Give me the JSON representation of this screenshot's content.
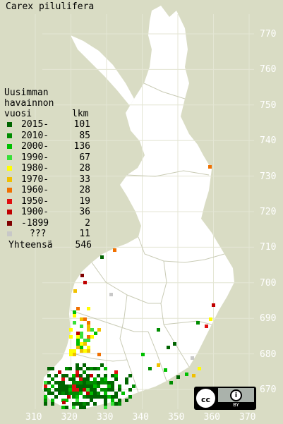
{
  "title": "Carex pilulifera",
  "y_ticks": [
    "770",
    "760",
    "750",
    "740",
    "730",
    "720",
    "710",
    "700",
    "690",
    "680",
    "670"
  ],
  "x_ticks": [
    "310",
    "320",
    "330",
    "340",
    "350",
    "360",
    "370"
  ],
  "legend": {
    "heading": [
      "Uusimman",
      "havainnon",
      "vuosi"
    ],
    "count_header": "lkm",
    "rows": [
      {
        "label": "2015-",
        "count": "101",
        "color": "#006400"
      },
      {
        "label": "2010-",
        "count": "85",
        "color": "#008c00"
      },
      {
        "label": "2000-",
        "count": "136",
        "color": "#00c000"
      },
      {
        "label": "1990-",
        "count": "67",
        "color": "#38e038"
      },
      {
        "label": "1980-",
        "count": "28",
        "color": "#ffff00"
      },
      {
        "label": "1970-",
        "count": "33",
        "color": "#f0c000"
      },
      {
        "label": "1960-",
        "count": "28",
        "color": "#f07000"
      },
      {
        "label": "1950-",
        "count": "19",
        "color": "#e01010"
      },
      {
        "label": "1900-",
        "count": "36",
        "color": "#c00000"
      },
      {
        "label": "-1899",
        "count": "2",
        "color": "#800000"
      },
      {
        "label": "???",
        "count": "11",
        "color": "#c8c8c8"
      }
    ],
    "total_label": "Yhteensä",
    "total_count": "546"
  },
  "license": {
    "cc": "cc",
    "by": "BY",
    "by_icon": "person-icon"
  },
  "colors": {
    "background": "#d9dcc4",
    "land": "#ffffff",
    "grid": "#c9cbb5"
  }
}
